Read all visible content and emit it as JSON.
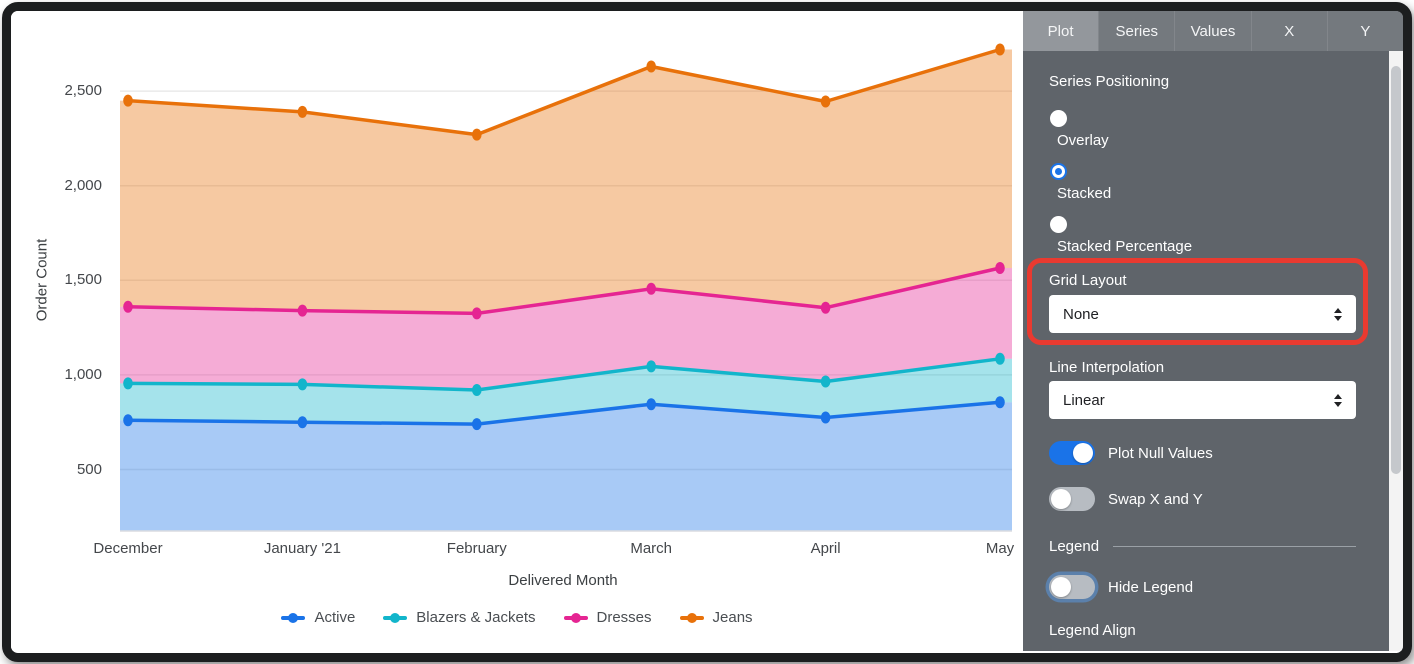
{
  "chart_data": {
    "type": "area",
    "stacking": "stacked",
    "xlabel": "Delivered Month",
    "ylabel": "Order Count",
    "x": [
      "December",
      "January '21",
      "February",
      "March",
      "April",
      "May"
    ],
    "series": [
      {
        "name": "Active",
        "color": "#1a73e8",
        "values": [
          760,
          750,
          740,
          845,
          775,
          855
        ]
      },
      {
        "name": "Blazers & Jackets",
        "color": "#12b5cb",
        "values": [
          195,
          200,
          180,
          200,
          190,
          230
        ]
      },
      {
        "name": "Dresses",
        "color": "#e52592",
        "values": [
          405,
          390,
          405,
          410,
          390,
          480
        ]
      },
      {
        "name": "Jeans",
        "color": "#e8710a",
        "values": [
          1090,
          1050,
          945,
          1175,
          1090,
          1155
        ]
      }
    ],
    "y_ticks": [
      500,
      1000,
      1500,
      2000,
      2500
    ],
    "y_tick_labels": [
      "500",
      "1,000",
      "1,500",
      "2,000",
      "2,500"
    ],
    "ylim": [
      175,
      2860
    ],
    "grid": true,
    "legend_position": "bottom"
  },
  "panel": {
    "tabs": [
      {
        "label": "Plot",
        "active": true
      },
      {
        "label": "Series",
        "active": false
      },
      {
        "label": "Values",
        "active": false
      },
      {
        "label": "X",
        "active": false
      },
      {
        "label": "Y",
        "active": false
      }
    ],
    "series_positioning": {
      "label": "Series Positioning",
      "options": [
        {
          "label": "Overlay",
          "selected": false
        },
        {
          "label": "Stacked",
          "selected": true
        },
        {
          "label": "Stacked Percentage",
          "selected": false
        }
      ]
    },
    "grid_layout": {
      "label": "Grid Layout",
      "value": "None"
    },
    "line_interpolation": {
      "label": "Line Interpolation",
      "value": "Linear"
    },
    "plot_null_values": {
      "label": "Plot Null Values",
      "on": true
    },
    "swap_x_and_y": {
      "label": "Swap X and Y",
      "on": false
    },
    "legend_section": {
      "label": "Legend"
    },
    "hide_legend": {
      "label": "Hide Legend",
      "on": false
    },
    "legend_align": {
      "label": "Legend Align"
    },
    "accent_color": "#1a73e8",
    "annotation_color": "#e93a30"
  }
}
